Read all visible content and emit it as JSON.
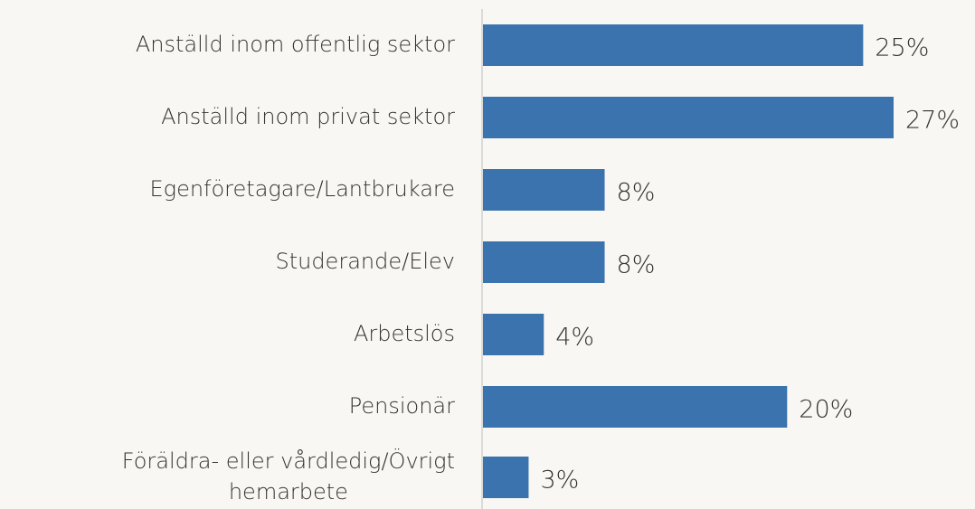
{
  "chart_data": {
    "type": "bar",
    "orientation": "horizontal",
    "categories": [
      "Anställd inom offentlig sektor",
      "Anställd inom privat sektor",
      "Egenföretagare/Lantbrukare",
      "Studerande/Elev",
      "Arbetslös",
      "Pensionär",
      "Föräldra- eller vårdledig/Övrigt hemarbete"
    ],
    "values": [
      25,
      27,
      8,
      8,
      4,
      20,
      3
    ],
    "value_labels": [
      "25%",
      "27%",
      "8%",
      "8%",
      "4%",
      "20%",
      "3%"
    ],
    "color": "#3a73ae"
  }
}
